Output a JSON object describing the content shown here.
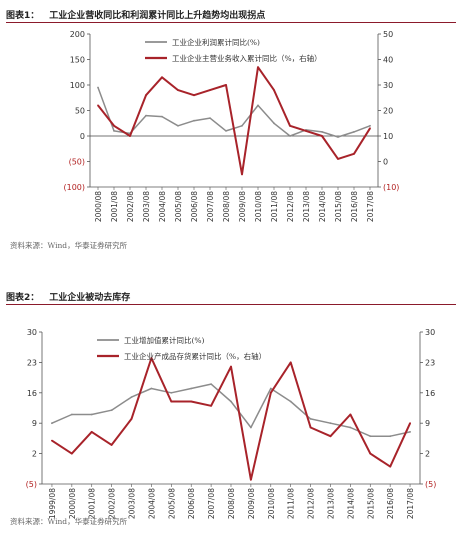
{
  "figure1": {
    "label": "图表1：",
    "title": "工业企业营收同比和利润累计同比上升趋势均出现拐点",
    "source": "资料来源：Wind，华泰证券研究所",
    "chart_data": {
      "type": "line",
      "x": [
        "2000/08",
        "2001/08",
        "2002/08",
        "2003/08",
        "2004/08",
        "2005/08",
        "2006/08",
        "2007/08",
        "2008/08",
        "2009/08",
        "2010/08",
        "2011/08",
        "2012/08",
        "2013/08",
        "2014/08",
        "2015/08",
        "2016/08",
        "2017/08"
      ],
      "ylim_left": [
        -100,
        200
      ],
      "ylim_right": [
        -10,
        50
      ],
      "yticks_left": [
        "200",
        "150",
        "100",
        "50",
        "0",
        "(50)",
        "(100)"
      ],
      "yticks_right": [
        "50",
        "40",
        "30",
        "20",
        "10",
        "0",
        "(10)"
      ],
      "series": [
        {
          "name": "工业企业利润累计同比(%)",
          "axis": "left",
          "color": "#8c8c8c",
          "values": [
            95,
            10,
            5,
            40,
            38,
            20,
            30,
            35,
            10,
            20,
            60,
            25,
            0,
            12,
            8,
            -2,
            8,
            20
          ]
        },
        {
          "name": "工业企业主营业务收入累计同比（%，右轴）",
          "axis": "right",
          "color": "#a8232a",
          "values": [
            22,
            14,
            10,
            26,
            33,
            28,
            26,
            28,
            30,
            -5,
            37,
            28,
            14,
            12,
            10,
            1,
            3,
            13
          ]
        }
      ],
      "grid": false,
      "legend": "top-center"
    }
  },
  "figure2": {
    "label": "图表2：",
    "title": "工业企业被动去库存",
    "source": "资料来源：Wind，华泰证券研究所",
    "chart_data": {
      "type": "line",
      "x": [
        "1999/08",
        "2000/08",
        "2001/08",
        "2002/08",
        "2003/08",
        "2004/08",
        "2005/08",
        "2006/08",
        "2007/08",
        "2008/08",
        "2009/08",
        "2010/08",
        "2011/08",
        "2012/08",
        "2013/08",
        "2014/08",
        "2015/08",
        "2016/08",
        "2017/08"
      ],
      "ylim_left": [
        -5,
        30
      ],
      "ylim_right": [
        -5,
        30
      ],
      "yticks_left": [
        "30",
        "23",
        "16",
        "9",
        "2",
        "(5)"
      ],
      "yticks_right": [
        "30",
        "23",
        "16",
        "9",
        "2",
        "(5)"
      ],
      "series": [
        {
          "name": "工业增加值累计同比(%)",
          "axis": "left",
          "color": "#8c8c8c",
          "values": [
            9,
            11,
            11,
            12,
            15,
            17,
            16,
            17,
            18,
            14,
            8,
            17,
            14,
            10,
            9,
            8,
            6,
            6,
            7
          ]
        },
        {
          "name": "工业企业产成品存货累计同比（%，右轴）",
          "axis": "right",
          "color": "#a8232a",
          "values": [
            5,
            2,
            7,
            4,
            10,
            24,
            14,
            14,
            13,
            22,
            -4,
            16,
            23,
            8,
            6,
            11,
            2,
            -1,
            9
          ]
        }
      ],
      "grid": false,
      "legend": "top-center"
    }
  }
}
